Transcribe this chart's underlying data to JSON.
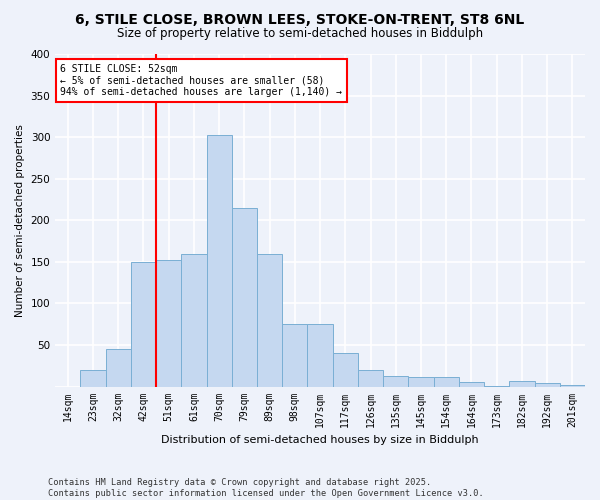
{
  "title1": "6, STILE CLOSE, BROWN LEES, STOKE-ON-TRENT, ST8 6NL",
  "title2": "Size of property relative to semi-detached houses in Biddulph",
  "xlabel": "Distribution of semi-detached houses by size in Biddulph",
  "ylabel": "Number of semi-detached properties",
  "categories": [
    "14sqm",
    "23sqm",
    "32sqm",
    "42sqm",
    "51sqm",
    "61sqm",
    "70sqm",
    "79sqm",
    "89sqm",
    "98sqm",
    "107sqm",
    "117sqm",
    "126sqm",
    "135sqm",
    "145sqm",
    "154sqm",
    "164sqm",
    "173sqm",
    "182sqm",
    "192sqm",
    "201sqm"
  ],
  "values": [
    0,
    20,
    45,
    150,
    152,
    160,
    302,
    215,
    160,
    75,
    75,
    40,
    20,
    13,
    12,
    12,
    5,
    1,
    7,
    4,
    2
  ],
  "bar_color": "#c5d8f0",
  "bar_edge_color": "#7aafd4",
  "background_color": "#eef2fa",
  "grid_color": "#ffffff",
  "red_line_index": 4,
  "annotation_title": "6 STILE CLOSE: 52sqm",
  "annotation_line1": "← 5% of semi-detached houses are smaller (58)",
  "annotation_line2": "94% of semi-detached houses are larger (1,140) →",
  "footer": "Contains HM Land Registry data © Crown copyright and database right 2025.\nContains public sector information licensed under the Open Government Licence v3.0.",
  "ylim": [
    0,
    400
  ],
  "yticks": [
    0,
    50,
    100,
    150,
    200,
    250,
    300,
    350,
    400
  ]
}
